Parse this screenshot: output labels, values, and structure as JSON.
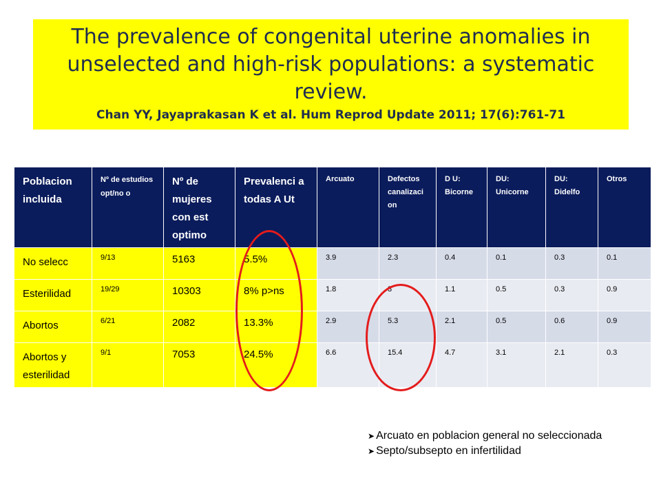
{
  "title": {
    "main": "The prevalence of congenital uterine anomalies in unselected and high-risk populations: a systematic review.",
    "reference": "Chan YY, Jayaprakasan K et al. Hum Reprod Update 2011; 17(6):761-71"
  },
  "table": {
    "headers": [
      "Poblacion incluida",
      "Nº de estudios opt/no o",
      "Nº de mujeres con est optimo",
      "Prevalenci a todas A Ut",
      "Arcuato",
      "Defectos canalizaci on",
      "D U: Bicorne",
      "DU: Unicorne",
      "DU: Didelfo",
      "Otros"
    ],
    "rows": [
      [
        "No selecc",
        "9/13",
        "5163",
        "5.5%",
        "3.9",
        "2.3",
        "0.4",
        "0.1",
        "0.3",
        "0.1"
      ],
      [
        "Esterilidad",
        "19/29",
        "10303",
        "8% p>ns",
        "1.8",
        "3",
        "1.1",
        "0.5",
        "0.3",
        "0.9"
      ],
      [
        "Abortos",
        "6/21",
        "2082",
        "13.3%",
        "2.9",
        "5.3",
        "2.1",
        "0.5",
        "0.6",
        "0.9"
      ],
      [
        "Abortos y esterilidad",
        "9/1",
        "7053",
        "24.5%",
        "6.6",
        "15.4",
        "4.7",
        "3.1",
        "2.1",
        "0.3"
      ]
    ]
  },
  "notes": [
    "Arcuato en poblacion general no seleccionada",
    "Septo/subsepto en infertilidad"
  ],
  "colors": {
    "highlight": "#ffff00",
    "header": "#0b1c5c",
    "circle": "#e41c1c"
  }
}
